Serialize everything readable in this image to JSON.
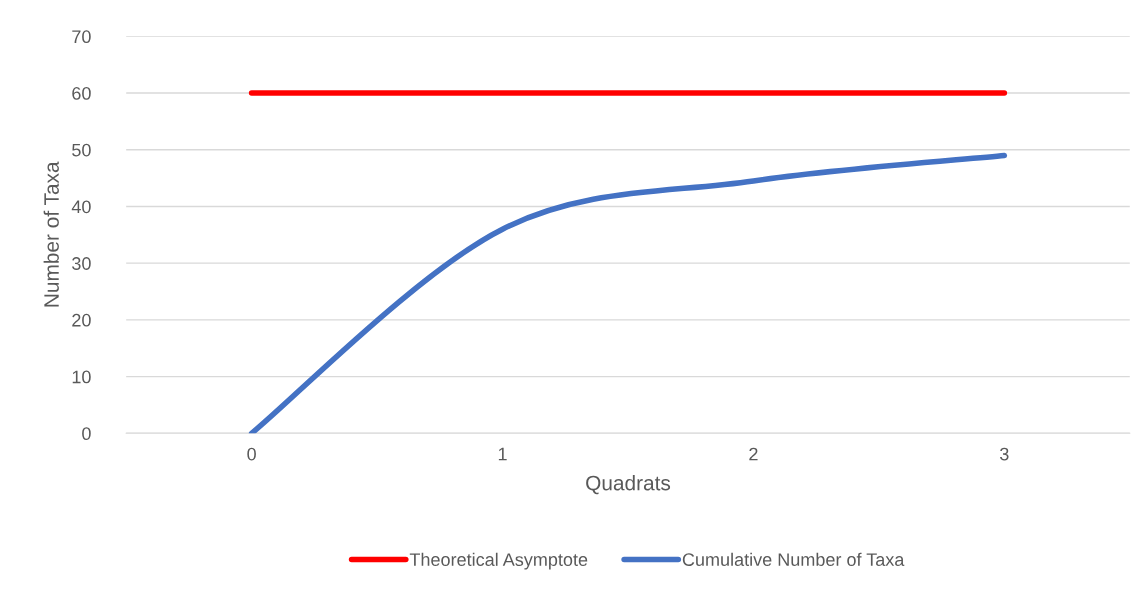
{
  "chart_data": {
    "type": "line",
    "xlabel": "Quadrats",
    "ylabel": "Number of Taxa",
    "categories": [
      "0",
      "1",
      "2",
      "3"
    ],
    "series": [
      {
        "name": "Theoretical Asymptote",
        "color": "#ff0000",
        "values": [
          60,
          60,
          60,
          60
        ]
      },
      {
        "name": "Cumulative Number of Taxa",
        "color": "#4472c4",
        "values": [
          0,
          36,
          44.5,
          49
        ]
      }
    ],
    "ylim": [
      0,
      70
    ],
    "yticks": [
      0,
      10,
      20,
      30,
      40,
      50,
      60,
      70
    ],
    "grid": "y",
    "legend": "bottom",
    "marker": "none",
    "line_style": "solid"
  }
}
